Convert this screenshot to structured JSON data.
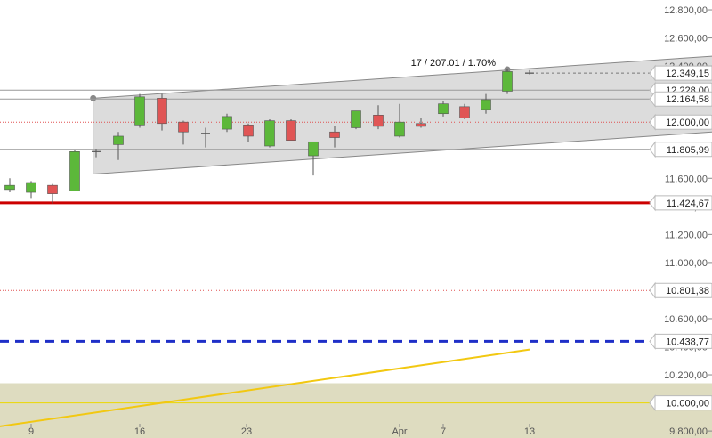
{
  "chart_data": {
    "type": "candlestick",
    "x_tick_labels": [
      {
        "label": "9",
        "date": "2015-03-09"
      },
      {
        "label": "16",
        "date": "2015-03-16"
      },
      {
        "label": "23",
        "date": "2015-03-23"
      },
      {
        "label": "Apr",
        "date": "2015-04-01"
      },
      {
        "label": "7",
        "date": "2015-04-07"
      },
      {
        "label": "13",
        "date": "2015-04-13"
      }
    ],
    "y_axis": {
      "range": [
        9750,
        12870
      ],
      "tick_values": [
        9800,
        10000,
        10200,
        10400,
        10600,
        10800,
        11000,
        11200,
        11400,
        11600,
        11800,
        12000,
        12200,
        12400,
        12600,
        12800
      ],
      "tick_labels": [
        "9.800,00",
        "10.000,00",
        "10.200,00",
        "10.400,00",
        "10.600,00",
        "10.800,00",
        "11.000,00",
        "11.200,00",
        "11.400,00",
        "11.600,00",
        "11.800,00",
        "12.000,00",
        "12.200,00",
        "12.400,00",
        "12.600,00",
        "12.800,00"
      ]
    },
    "candles": [
      {
        "date": "2015-03-05",
        "open": 11520,
        "high": 11600,
        "low": 11500,
        "close": 11550
      },
      {
        "date": "2015-03-06",
        "open": 11500,
        "high": 11580,
        "low": 11460,
        "close": 11570
      },
      {
        "date": "2015-03-09",
        "open": 11550,
        "high": 11560,
        "low": 11420,
        "close": 11490
      },
      {
        "date": "2015-03-10",
        "open": 11510,
        "high": 11800,
        "low": 11510,
        "close": 11790
      },
      {
        "date": "2015-03-11",
        "open": 11780,
        "high": 11810,
        "low": 11750,
        "close": 11790
      },
      {
        "date": "2015-03-12",
        "open": 11840,
        "high": 11930,
        "low": 11730,
        "close": 11900
      },
      {
        "date": "2015-03-13",
        "open": 11980,
        "high": 12200,
        "low": 11960,
        "close": 12180
      },
      {
        "date": "2015-03-16",
        "open": 12170,
        "high": 12200,
        "low": 11940,
        "close": 11990
      },
      {
        "date": "2015-03-17",
        "open": 12000,
        "high": 12010,
        "low": 11840,
        "close": 11930
      },
      {
        "date": "2015-03-18",
        "open": 11920,
        "high": 11960,
        "low": 11820,
        "close": 11920
      },
      {
        "date": "2015-03-19",
        "open": 11950,
        "high": 12060,
        "low": 11930,
        "close": 12040
      },
      {
        "date": "2015-03-20",
        "open": 11980,
        "high": 11990,
        "low": 11860,
        "close": 11900
      },
      {
        "date": "2015-03-23",
        "open": 11830,
        "high": 12020,
        "low": 11820,
        "close": 12010
      },
      {
        "date": "2015-03-24",
        "open": 12010,
        "high": 12020,
        "low": 11870,
        "close": 11870
      },
      {
        "date": "2015-03-25",
        "open": 11760,
        "high": 11860,
        "low": 11620,
        "close": 11860
      },
      {
        "date": "2015-03-26",
        "open": 11930,
        "high": 11970,
        "low": 11820,
        "close": 11890
      },
      {
        "date": "2015-03-27",
        "open": 11960,
        "high": 12080,
        "low": 11950,
        "close": 12080
      },
      {
        "date": "2015-03-30",
        "open": 12050,
        "high": 12120,
        "low": 11950,
        "close": 11970
      },
      {
        "date": "2015-03-31",
        "open": 11900,
        "high": 12130,
        "low": 11890,
        "close": 12000
      },
      {
        "date": "2015-04-01",
        "open": 11990,
        "high": 12030,
        "low": 11960,
        "close": 11970
      },
      {
        "date": "2015-04-07",
        "open": 12060,
        "high": 12150,
        "low": 12040,
        "close": 12130
      },
      {
        "date": "2015-04-08",
        "open": 12110,
        "high": 12130,
        "low": 12020,
        "close": 12030
      },
      {
        "date": "2015-04-09",
        "open": 12090,
        "high": 12200,
        "low": 12060,
        "close": 12160
      },
      {
        "date": "2015-04-10",
        "open": 12220,
        "high": 12375,
        "low": 12200,
        "close": 12360
      },
      {
        "date": "2015-04-13",
        "open": 12355,
        "high": 12370,
        "low": 12340,
        "close": 12349
      }
    ],
    "price_levels": [
      {
        "label": "12.349,15",
        "value": 12349.15,
        "style": "dash",
        "color": "#777777"
      },
      {
        "label": "12.228,00",
        "value": 12228.0,
        "style": "solid",
        "color": "#999999"
      },
      {
        "label": "12.164,58",
        "value": 12164.58,
        "style": "solid",
        "color": "#999999"
      },
      {
        "label": "12.000,00",
        "value": 12000.0,
        "style": "dotted",
        "color": "#e05050"
      },
      {
        "label": "11.805,99",
        "value": 11805.99,
        "style": "solid",
        "color": "#999999"
      },
      {
        "label": "11.424,67",
        "value": 11424.67,
        "style": "thick",
        "color": "#cc0000"
      },
      {
        "label": "10.801,38",
        "value": 10801.38,
        "style": "dotted",
        "color": "#e05050"
      },
      {
        "label": "10.438,77",
        "value": 10438.77,
        "style": "thick-dash",
        "color": "#1f2fc8"
      },
      {
        "label": "10.000,00",
        "value": 10000.0,
        "style": "solid",
        "color": "#ecd800"
      }
    ],
    "channel": {
      "start_date": "2015-03-13",
      "end_date": "2015-04-21",
      "upper_start": 12170,
      "upper_end": 12470,
      "lower_start": 11630,
      "lower_end": 11930,
      "fill": "#dcdcdc",
      "annotation": "17 / 207.01 / 1.70%"
    },
    "trendline": {
      "start_date": "2015-03-02",
      "end_date": "2015-04-13",
      "start_value": 9810,
      "end_value": 10380,
      "color": "#f2c811"
    },
    "bottom_band": {
      "from": 9750,
      "to": 10140,
      "fill": "#dedcc0"
    },
    "colors": {
      "up": "#5cb83a",
      "down": "#e05555",
      "doji": "#555555"
    }
  }
}
